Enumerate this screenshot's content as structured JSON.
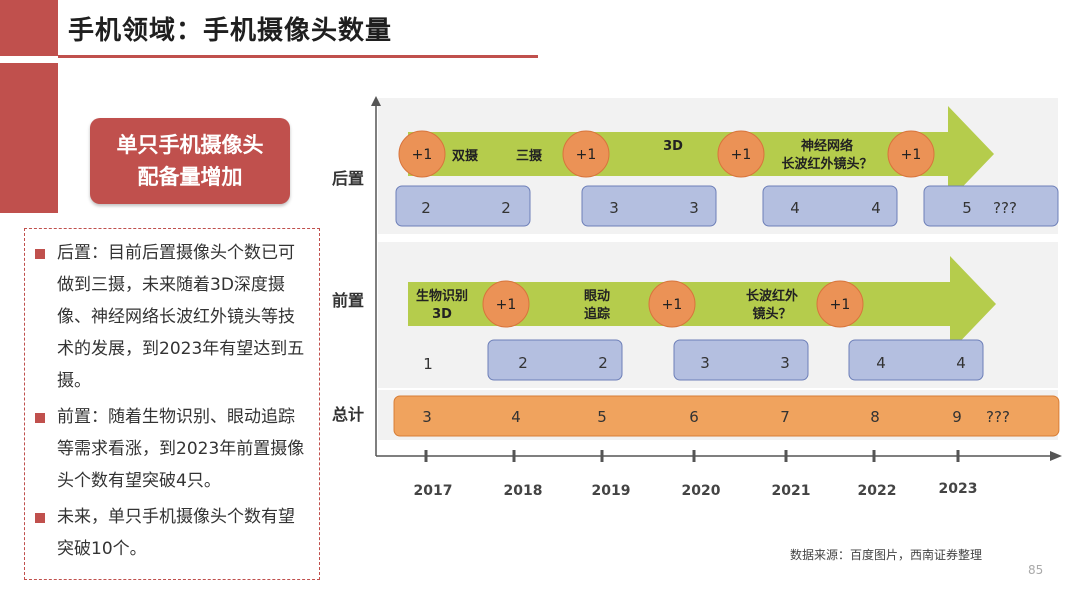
{
  "title": "手机领域：手机摄像头数量",
  "badge": "单只手机摄像头配备量增加",
  "notes": [
    "后置：目前后置摄像头个数已可做到三摄，未来随着3D深度摄像、神经网络长波红外镜头等技术的发展，到2023年有望达到五摄。",
    "前置：随着生物识别、眼动追踪等需求看涨，到2023年前置摄像头个数有望突破4只。",
    "未来，单只手机摄像头个数有望突破10个。"
  ],
  "source": "数据来源：百度图片，西南证券整理",
  "page_number": "85",
  "colors": {
    "accent": "#c0504d",
    "arrow": "#b5cc4c",
    "box_blue": "#b4bfe0",
    "box_orange": "#f0a35e",
    "circle": "#eb9256"
  },
  "chart": {
    "rows": {
      "rear": "后置",
      "front": "前置",
      "total": "总计"
    },
    "years": [
      "2017",
      "2018",
      "2019",
      "2020",
      "2021",
      "2022",
      "2023"
    ],
    "plus_label": "+1",
    "rear_arrow_texts": [
      "双摄",
      "三摄",
      "3D",
      "神经网络",
      "长波红外镜头？"
    ],
    "rear_counts": [
      "2",
      "2",
      "3",
      "3",
      "4",
      "4",
      "5"
    ],
    "rear_extra": "???",
    "front_arrow_texts": [
      "生物识别",
      "3D",
      "眼动",
      "追踪",
      "长波红外",
      "镜头？"
    ],
    "front_counts": [
      "1",
      "2",
      "2",
      "3",
      "3",
      "4",
      "4"
    ],
    "total_counts": [
      "3",
      "4",
      "5",
      "6",
      "7",
      "8",
      "9"
    ],
    "total_extra": "???"
  }
}
